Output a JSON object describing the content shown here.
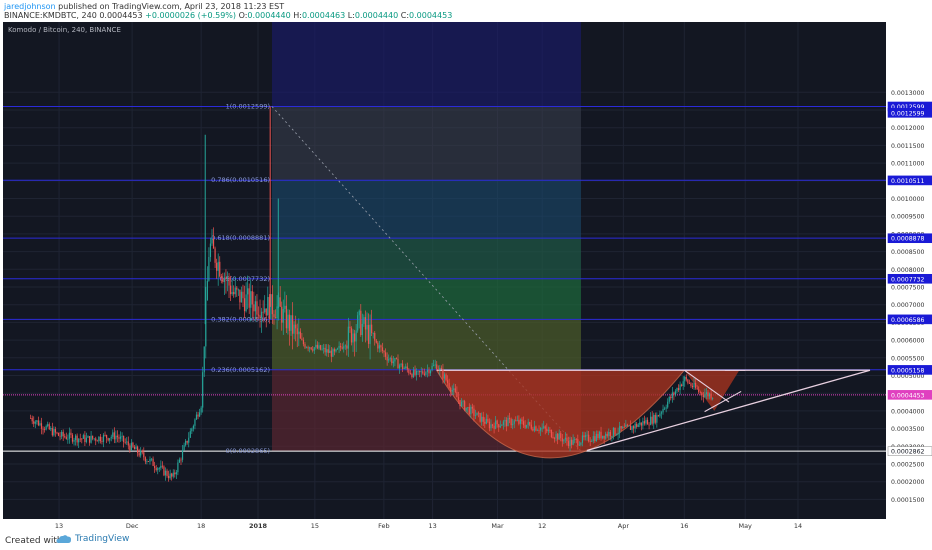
{
  "header": {
    "author": "jaredjohnson",
    "published": " published on TradingView.com, April 23, 2018 11:23 EST",
    "symbol": "BINANCE:KMDBTC, 240",
    "price": "0.0004453",
    "change": "+0.0000026 (+0.59%)",
    "o_label": "O:",
    "o": "0.0004440",
    "h_label": "H:",
    "h": "0.0004463",
    "l_label": "L:",
    "l": "0.0004440",
    "c_label": "C:",
    "c": "0.0004453"
  },
  "chart_data": {
    "type": "candlestick",
    "title": "Komodo / Bitcoin, 240, BINANCE",
    "x_tick_labels": [
      "13",
      "Dec",
      "18",
      "2018",
      "15",
      "Feb",
      "13",
      "Mar",
      "12",
      "Apr",
      "16",
      "May",
      "14"
    ],
    "y_tick_labels": [
      "0.0013000",
      "0.0012500",
      "0.0012000",
      "0.0011500",
      "0.0011000",
      "0.0010500",
      "0.0010000",
      "0.0009500",
      "0.0009000",
      "0.0008500",
      "0.0008000",
      "0.0007500",
      "0.0007000",
      "0.0006500",
      "0.0006000",
      "0.0005500",
      "0.0005000",
      "0.0004500",
      "0.0004000",
      "0.0003500",
      "0.0003000",
      "0.0002500",
      "0.0002000",
      "0.0001500"
    ],
    "ylim": [
      0.000125,
      0.001325
    ],
    "price_sketch": [
      [
        "Nov 6",
        0.00038
      ],
      [
        "Nov 13",
        0.00033
      ],
      [
        "Nov 20",
        0.00032
      ],
      [
        "Nov 27",
        0.00033
      ],
      [
        "Dec 4",
        0.00027
      ],
      [
        "Dec 11",
        0.00021
      ],
      [
        "Dec 15",
        0.00033
      ],
      [
        "Dec 18",
        0.00042
      ],
      [
        "Dec 20",
        0.00087
      ],
      [
        "Dec 26",
        0.00073
      ],
      [
        "Jan 1",
        0.0007
      ],
      [
        "Jan 6",
        0.00069
      ],
      [
        "Jan 12",
        0.00059
      ],
      [
        "Jan 20",
        0.00056
      ],
      [
        "Jan 26",
        0.00065
      ],
      [
        "Feb 2",
        0.00055
      ],
      [
        "Feb 9",
        0.0005
      ],
      [
        "Feb 14",
        0.00053
      ],
      [
        "Feb 20",
        0.00042
      ],
      [
        "Feb 27",
        0.00036
      ],
      [
        "Mar 5",
        0.00037
      ],
      [
        "Mar 12",
        0.00035
      ],
      [
        "Mar 19",
        0.00031
      ],
      [
        "Mar 26",
        0.00033
      ],
      [
        "Apr 2",
        0.00035
      ],
      [
        "Apr 9",
        0.00038
      ],
      [
        "Apr 16",
        0.00049
      ],
      [
        "Apr 20",
        0.00045
      ],
      [
        "Apr 23",
        0.000445
      ]
    ],
    "fib_levels": [
      {
        "label": "1(0.0012599)",
        "value": 0.0012599
      },
      {
        "label": "0.786(0.0010516)",
        "value": 0.0010516
      },
      {
        "label": "0.618(0.0008881)",
        "value": 0.0008881
      },
      {
        "label": "0.5(0.0007732)",
        "value": 0.0007732
      },
      {
        "label": "0.382(0.0006586)",
        "value": 0.0006586
      },
      {
        "label": "0.236(0.0005162)",
        "value": 0.0005162
      },
      {
        "label": "0(0.0002865)",
        "value": 0.0002865
      }
    ],
    "price_tags": [
      {
        "label": "0.0012599",
        "value": 0.0012599,
        "color": "#1a1ad6"
      },
      {
        "label": "0.0012599",
        "value": 0.001242,
        "color": "#1a1ad6"
      },
      {
        "label": "0.0010511",
        "value": 0.0010511,
        "color": "#1a1ad6"
      },
      {
        "label": "0.0008878",
        "value": 0.0008878,
        "color": "#1a1ad6"
      },
      {
        "label": "0.0007732",
        "value": 0.0007732,
        "color": "#1a1ad6"
      },
      {
        "label": "0.0006586",
        "value": 0.0006586,
        "color": "#1a1ad6"
      },
      {
        "label": "0.0005158",
        "value": 0.0005158,
        "color": "#1a1ad6"
      },
      {
        "label": "0.0004453",
        "value": 0.0004453,
        "color": "#e040c0"
      },
      {
        "label": "0.0002862",
        "value": 0.0002862,
        "color": "#ffffff"
      }
    ],
    "grid": true,
    "colors": {
      "background": "#131722",
      "up": "#26a69a",
      "down": "#ef5350",
      "level_line": "#2b2bd9",
      "current": "#e040c0"
    }
  },
  "footer": {
    "created": "Created with",
    "brand": "TradingView"
  },
  "icons": {
    "brand": "tradingview-cloud-icon"
  }
}
